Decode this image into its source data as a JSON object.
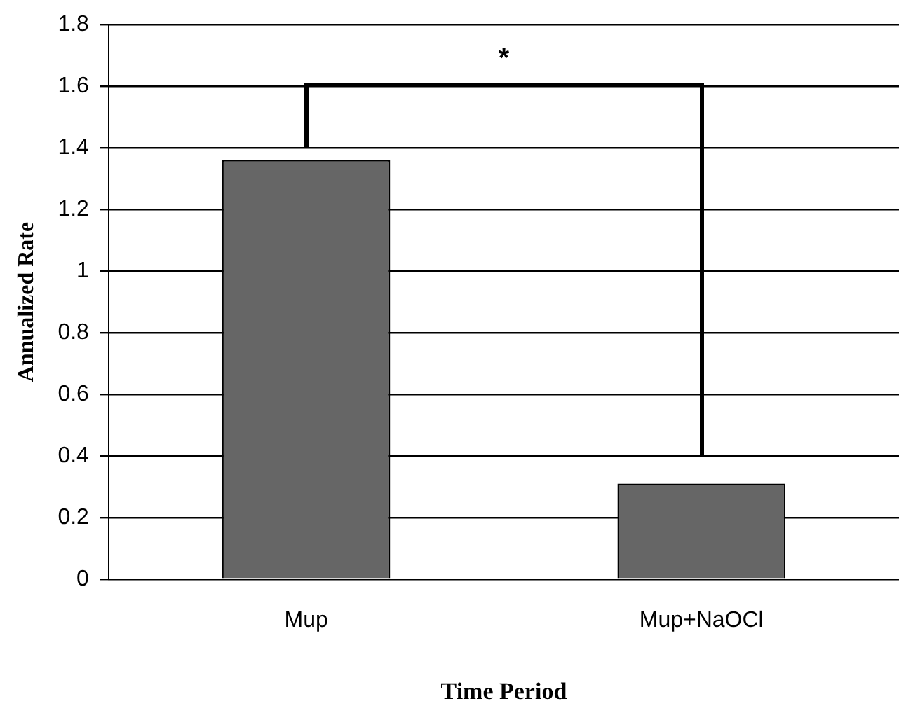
{
  "chart_data": {
    "type": "bar",
    "xlabel": "Time Period",
    "ylabel": "Annualized Rate",
    "categories": [
      "Mup",
      "Mup+NaOCl"
    ],
    "values": [
      1.36,
      0.31
    ],
    "color": "#666666",
    "ylim": [
      0,
      1.8
    ],
    "yticks": [
      0,
      {
        "value": 0.2,
        "label": "0.2"
      },
      {
        "value": 0.4,
        "label": "0.4"
      },
      {
        "value": 0.6,
        "label": "0.6"
      },
      {
        "value": 0.8,
        "label": "0.8"
      },
      1,
      {
        "value": 1.2,
        "label": "1.2"
      },
      {
        "value": 1.4,
        "label": "1.4"
      },
      {
        "value": 1.6,
        "label": "1.6"
      },
      {
        "value": 1.8,
        "label": "1.8"
      }
    ],
    "grid": "y",
    "legend": false,
    "annotations": [
      "*"
    ]
  }
}
